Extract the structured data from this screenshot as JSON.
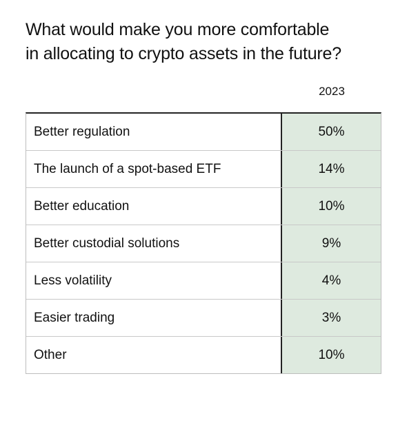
{
  "title_lines": [
    "What would make you more comfortable",
    "in allocating to crypto assets in the future?"
  ],
  "colors": {
    "value_column_bg": "#deeadf",
    "divider": "#222222"
  },
  "chart_data": {
    "type": "table",
    "title": "What would make you more comfortable in allocating to crypto assets in the future?",
    "columns": [
      "",
      "2023"
    ],
    "rows": [
      {
        "label": "Better regulation",
        "value": "50%"
      },
      {
        "label": "The launch of a spot-based ETF",
        "value": "14%"
      },
      {
        "label": "Better education",
        "value": "10%"
      },
      {
        "label": "Better custodial solutions",
        "value": "9%"
      },
      {
        "label": "Less volatility",
        "value": "4%"
      },
      {
        "label": "Easier trading",
        "value": "3%"
      },
      {
        "label": "Other",
        "value": "10%"
      }
    ]
  }
}
